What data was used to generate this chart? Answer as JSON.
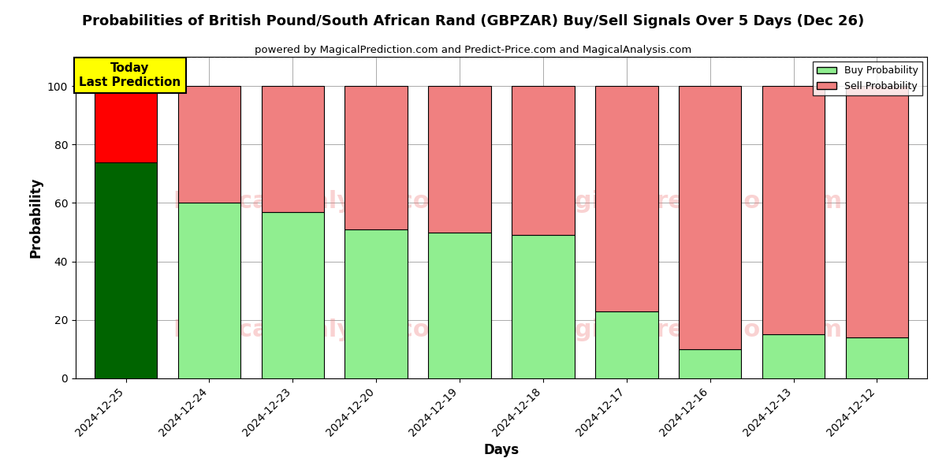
{
  "title": "Probabilities of British Pound/South African Rand (GBPZAR) Buy/Sell Signals Over 5 Days (Dec 26)",
  "subtitle": "powered by MagicalPrediction.com and Predict-Price.com and MagicalAnalysis.com",
  "xlabel": "Days",
  "ylabel": "Probability",
  "categories": [
    "2024-12-25",
    "2024-12-24",
    "2024-12-23",
    "2024-12-20",
    "2024-12-19",
    "2024-12-18",
    "2024-12-17",
    "2024-12-16",
    "2024-12-13",
    "2024-12-12"
  ],
  "buy_values": [
    74,
    60,
    57,
    51,
    50,
    49,
    23,
    10,
    15,
    14
  ],
  "sell_values": [
    26,
    40,
    43,
    49,
    50,
    51,
    77,
    90,
    85,
    86
  ],
  "buy_colors": [
    "#006400",
    "#90EE90",
    "#90EE90",
    "#90EE90",
    "#90EE90",
    "#90EE90",
    "#90EE90",
    "#90EE90",
    "#90EE90",
    "#90EE90"
  ],
  "sell_colors": [
    "#FF0000",
    "#F08080",
    "#F08080",
    "#F08080",
    "#F08080",
    "#F08080",
    "#F08080",
    "#F08080",
    "#F08080",
    "#F08080"
  ],
  "today_label": "Today\nLast Prediction",
  "legend_buy": "Buy Probability",
  "legend_sell": "Sell Probability",
  "ylim": [
    0,
    110
  ],
  "yticks": [
    0,
    20,
    40,
    60,
    80,
    100
  ],
  "dashed_line_y": 110,
  "bg_color": "#FFFFFF",
  "grid_color": "#AAAAAA"
}
